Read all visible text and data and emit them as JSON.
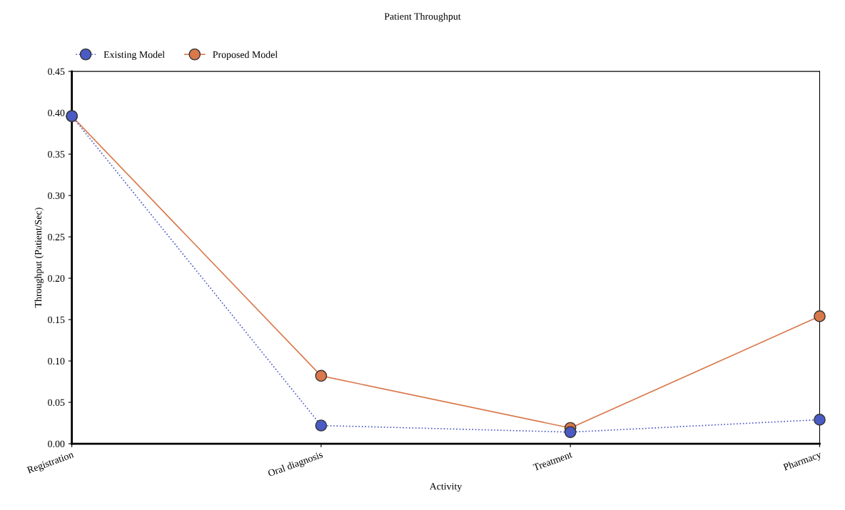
{
  "chart_data": {
    "type": "line",
    "title": "Patient Throughput",
    "xlabel": "Activity",
    "ylabel": "Throughput (Patient/Sec)",
    "categories": [
      "Registration",
      "Oral diagnosis",
      "Treatment",
      "Pharmacy"
    ],
    "series": [
      {
        "name": "Existing Model",
        "color": "#4a5bc4",
        "line_style": "dotted",
        "values": [
          0.396,
          0.022,
          0.014,
          0.029
        ]
      },
      {
        "name": "Proposed Model",
        "color": "#d9784a",
        "line_style": "solid",
        "values": [
          0.396,
          0.082,
          0.019,
          0.154
        ]
      }
    ],
    "ylim": [
      0,
      0.45
    ],
    "yticks": [
      {
        "value": 0,
        "label": "0.00"
      },
      {
        "value": 0.05,
        "label": "0.05"
      },
      {
        "value": 0.1,
        "label": "0.10"
      },
      {
        "value": 0.15,
        "label": "0.15"
      },
      {
        "value": 0.2,
        "label": "0.20"
      },
      {
        "value": 0.25,
        "label": "0.25"
      },
      {
        "value": 0.3,
        "label": "0.30"
      },
      {
        "value": 0.35,
        "label": "0.35"
      },
      {
        "value": 0.4,
        "label": "0.40"
      },
      {
        "value": 0.45,
        "label": "0.45"
      }
    ],
    "marker": "circle",
    "legend": "top left"
  }
}
